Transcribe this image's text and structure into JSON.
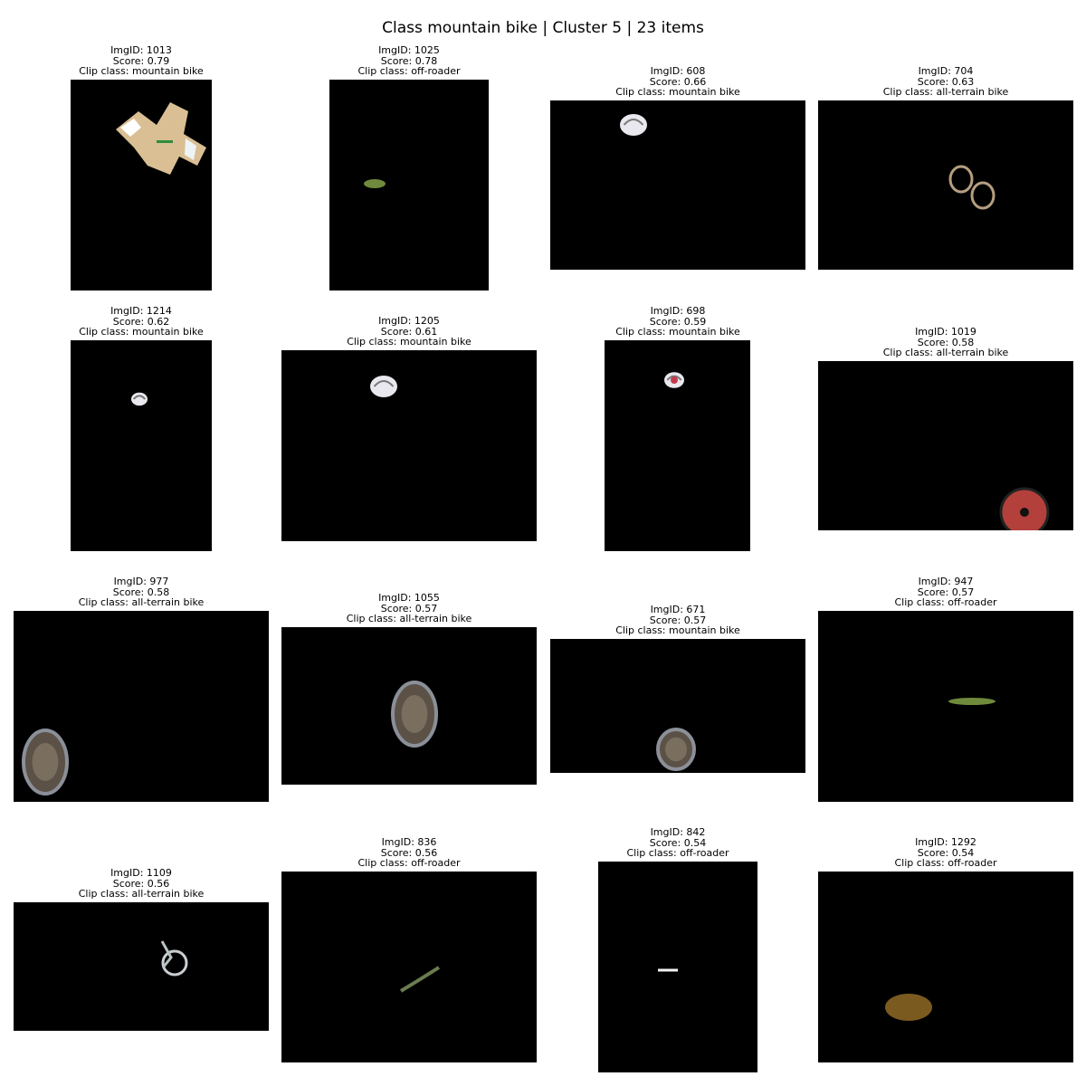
{
  "title": "Class mountain bike | Cluster 5 | 23 items",
  "labels": {
    "img_id": "ImgID: ",
    "score": "Score: ",
    "clip_class": "Clip class: "
  },
  "items": [
    {
      "img_id": "1013",
      "score": "0.79",
      "clip_class": "mountain bike",
      "content": "cycling-jersey"
    },
    {
      "img_id": "1025",
      "score": "0.78",
      "clip_class": "off-roader",
      "content": "grass-patch"
    },
    {
      "img_id": "608",
      "score": "0.66",
      "clip_class": "mountain bike",
      "content": "helmet"
    },
    {
      "img_id": "704",
      "score": "0.63",
      "clip_class": "all-terrain bike",
      "content": "bike-wheels"
    },
    {
      "img_id": "1214",
      "score": "0.62",
      "clip_class": "mountain bike",
      "content": "helmet"
    },
    {
      "img_id": "1205",
      "score": "0.61",
      "clip_class": "mountain bike",
      "content": "helmet"
    },
    {
      "img_id": "698",
      "score": "0.59",
      "clip_class": "mountain bike",
      "content": "helmet"
    },
    {
      "img_id": "1019",
      "score": "0.58",
      "clip_class": "all-terrain bike",
      "content": "red-wheel"
    },
    {
      "img_id": "977",
      "score": "0.58",
      "clip_class": "all-terrain bike",
      "content": "wheel"
    },
    {
      "img_id": "1055",
      "score": "0.57",
      "clip_class": "all-terrain bike",
      "content": "wheel"
    },
    {
      "img_id": "671",
      "score": "0.57",
      "clip_class": "mountain bike",
      "content": "wheel"
    },
    {
      "img_id": "947",
      "score": "0.57",
      "clip_class": "off-roader",
      "content": "grass-strip"
    },
    {
      "img_id": "1109",
      "score": "0.56",
      "clip_class": "all-terrain bike",
      "content": "bicycle"
    },
    {
      "img_id": "836",
      "score": "0.56",
      "clip_class": "off-roader",
      "content": "branch"
    },
    {
      "img_id": "842",
      "score": "0.54",
      "clip_class": "off-roader",
      "content": "white-streak"
    },
    {
      "img_id": "1292",
      "score": "0.54",
      "clip_class": "off-roader",
      "content": "dirt-mound"
    }
  ]
}
